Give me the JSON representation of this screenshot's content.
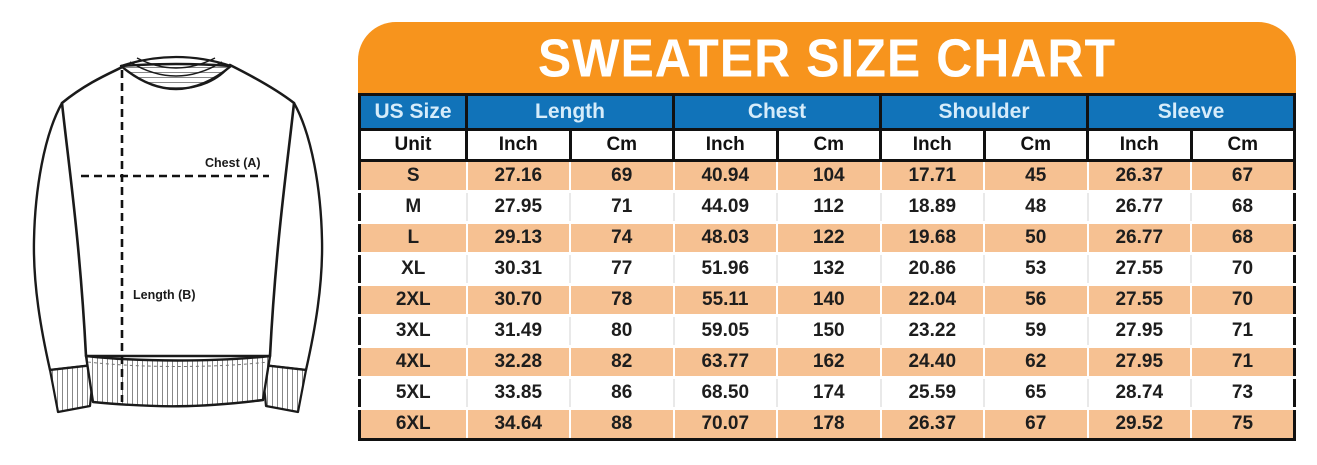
{
  "title": "SWEATER SIZE CHART",
  "diagram": {
    "chest_label": "Chest (A)",
    "length_label": "Length (B)"
  },
  "colors": {
    "banner_orange": "#F7941D",
    "header_blue": "#1173B9",
    "header_text_light_blue": "#D6ECFA",
    "row_peach": "#F6C192",
    "row_white": "#FFFFFF",
    "text_black": "#1D1D1D"
  },
  "chart_data": {
    "type": "table",
    "title": "SWEATER SIZE CHART",
    "size_column_header": "US Size",
    "group_headers": [
      "Length",
      "Chest",
      "Shoulder",
      "Sleeve"
    ],
    "unit_row": [
      "Unit",
      "Inch",
      "Cm",
      "Inch",
      "Cm",
      "Inch",
      "Cm",
      "Inch",
      "Cm"
    ],
    "rows": [
      [
        "S",
        "27.16",
        "69",
        "40.94",
        "104",
        "17.71",
        "45",
        "26.37",
        "67"
      ],
      [
        "M",
        "27.95",
        "71",
        "44.09",
        "112",
        "18.89",
        "48",
        "26.77",
        "68"
      ],
      [
        "L",
        "29.13",
        "74",
        "48.03",
        "122",
        "19.68",
        "50",
        "26.77",
        "68"
      ],
      [
        "XL",
        "30.31",
        "77",
        "51.96",
        "132",
        "20.86",
        "53",
        "27.55",
        "70"
      ],
      [
        "2XL",
        "30.70",
        "78",
        "55.11",
        "140",
        "22.04",
        "56",
        "27.55",
        "70"
      ],
      [
        "3XL",
        "31.49",
        "80",
        "59.05",
        "150",
        "23.22",
        "59",
        "27.95",
        "71"
      ],
      [
        "4XL",
        "32.28",
        "82",
        "63.77",
        "162",
        "24.40",
        "62",
        "27.95",
        "71"
      ],
      [
        "5XL",
        "33.85",
        "86",
        "68.50",
        "174",
        "25.59",
        "65",
        "28.74",
        "73"
      ],
      [
        "6XL",
        "34.64",
        "88",
        "70.07",
        "178",
        "26.37",
        "67",
        "29.52",
        "75"
      ]
    ]
  }
}
